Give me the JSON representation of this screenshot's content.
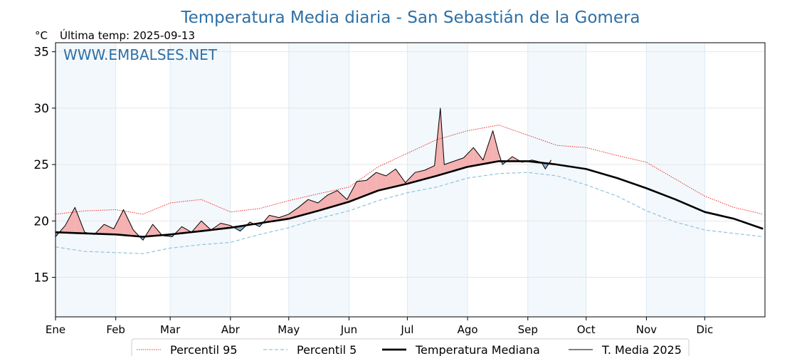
{
  "chart_data": {
    "type": "line",
    "title": "Temperatura Media diaria - San Sebastián de la Gomera",
    "unit_label": "°C",
    "subtitle": "Última temp: 2025-09-13",
    "watermark": "WWW.EMBALSES.NET",
    "ylim": [
      11.5,
      35.8
    ],
    "yticks": [
      15,
      20,
      25,
      30,
      35
    ],
    "x_range_days": [
      0,
      365
    ],
    "months": [
      {
        "label": "Ene",
        "day": 0
      },
      {
        "label": "Feb",
        "day": 31
      },
      {
        "label": "Mar",
        "day": 59
      },
      {
        "label": "Abr",
        "day": 90
      },
      {
        "label": "May",
        "day": 120
      },
      {
        "label": "Jun",
        "day": 151
      },
      {
        "label": "Jul",
        "day": 181
      },
      {
        "label": "Ago",
        "day": 212
      },
      {
        "label": "Sep",
        "day": 243
      },
      {
        "label": "Oct",
        "day": 273
      },
      {
        "label": "Nov",
        "day": 304
      },
      {
        "label": "Dic",
        "day": 334
      }
    ],
    "grid": true,
    "legend_position": "bottom",
    "series": [
      {
        "name": "Percentil 95",
        "style": "dotted",
        "color": "#e8302a",
        "x": [
          0,
          15,
          31,
          45,
          59,
          75,
          90,
          105,
          120,
          135,
          151,
          166,
          181,
          196,
          212,
          228,
          243,
          258,
          273,
          289,
          304,
          319,
          334,
          349,
          364
        ],
        "y": [
          20.6,
          20.9,
          21.0,
          20.6,
          21.6,
          21.9,
          20.8,
          21.1,
          21.8,
          22.4,
          23.0,
          24.8,
          26.0,
          27.2,
          28.0,
          28.5,
          27.6,
          26.7,
          26.5,
          25.8,
          25.2,
          23.7,
          22.2,
          21.2,
          20.6
        ]
      },
      {
        "name": "Percentil 5",
        "style": "dashed",
        "color": "#8ec5dc",
        "x": [
          0,
          15,
          31,
          45,
          59,
          75,
          90,
          105,
          120,
          135,
          151,
          166,
          181,
          196,
          212,
          228,
          243,
          258,
          273,
          289,
          304,
          319,
          334,
          349,
          364
        ],
        "y": [
          17.7,
          17.3,
          17.2,
          17.1,
          17.6,
          17.9,
          18.1,
          18.8,
          19.4,
          20.2,
          20.9,
          21.8,
          22.5,
          23.0,
          23.8,
          24.2,
          24.3,
          24.0,
          23.2,
          22.2,
          20.9,
          19.9,
          19.2,
          18.9,
          18.6
        ]
      },
      {
        "name": "Temperatura Mediana",
        "style": "solid-thick",
        "color": "#000000",
        "x": [
          0,
          15,
          31,
          45,
          59,
          75,
          90,
          105,
          120,
          135,
          151,
          166,
          181,
          196,
          212,
          228,
          243,
          258,
          273,
          289,
          304,
          319,
          334,
          349,
          364
        ],
        "y": [
          19.0,
          18.9,
          18.8,
          18.6,
          18.8,
          19.1,
          19.4,
          19.8,
          20.2,
          20.9,
          21.7,
          22.7,
          23.3,
          24.0,
          24.8,
          25.3,
          25.3,
          25.0,
          24.6,
          23.8,
          22.9,
          21.9,
          20.8,
          20.2,
          19.3
        ]
      },
      {
        "name": "T. Media 2025",
        "style": "solid-thin",
        "color": "#000000",
        "x": [
          0,
          5,
          10,
          15,
          20,
          25,
          30,
          35,
          40,
          45,
          50,
          55,
          60,
          65,
          70,
          75,
          80,
          85,
          90,
          95,
          100,
          105,
          110,
          115,
          120,
          125,
          130,
          135,
          140,
          145,
          150,
          155,
          160,
          165,
          170,
          175,
          180,
          185,
          190,
          195,
          198,
          200,
          205,
          210,
          215,
          220,
          225,
          228,
          230,
          235,
          240,
          245,
          250,
          252,
          255
        ],
        "y": [
          18.6,
          19.6,
          21.2,
          19.0,
          18.8,
          19.7,
          19.3,
          21.0,
          19.2,
          18.3,
          19.7,
          18.7,
          18.6,
          19.5,
          19.0,
          20.0,
          19.2,
          19.8,
          19.6,
          19.1,
          19.9,
          19.5,
          20.5,
          20.3,
          20.6,
          21.2,
          21.9,
          21.6,
          22.3,
          22.7,
          21.9,
          23.5,
          23.6,
          24.3,
          24.0,
          24.6,
          23.4,
          24.3,
          24.5,
          24.9,
          30.0,
          25.0,
          25.3,
          25.6,
          26.5,
          25.4,
          28.0,
          26.0,
          25.0,
          25.7,
          25.2,
          25.4,
          25.2,
          24.6,
          25.4
        ]
      }
    ]
  }
}
